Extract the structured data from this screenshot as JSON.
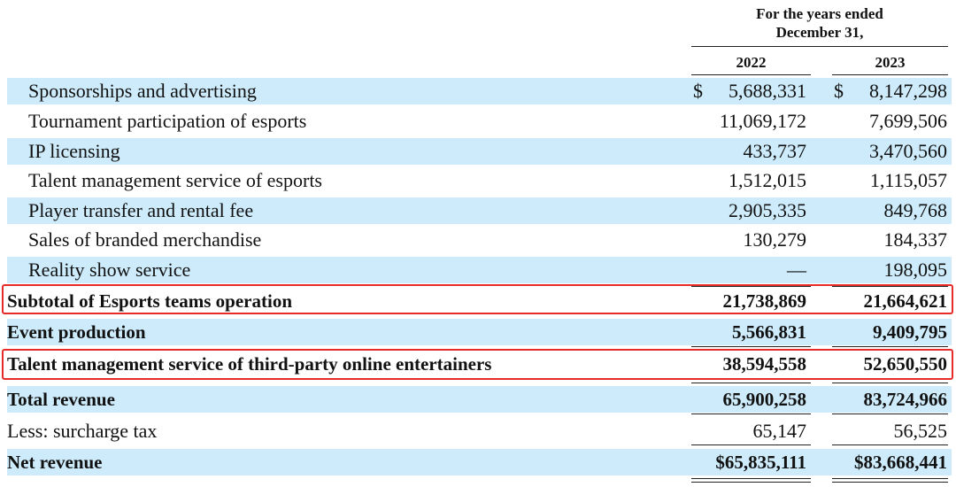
{
  "header": {
    "period_line1": "For the years ended",
    "period_line2": "December 31,",
    "year_1": "2022",
    "year_2": "2023"
  },
  "rows": [
    {
      "label": "Sponsorships and advertising",
      "v2022": "5,688,331",
      "v2023": "8,147,298",
      "dollar": "$"
    },
    {
      "label": "Tournament participation of esports",
      "v2022": "11,069,172",
      "v2023": "7,699,506"
    },
    {
      "label": "IP licensing",
      "v2022": "433,737",
      "v2023": "3,470,560"
    },
    {
      "label": "Talent management service of esports",
      "v2022": "1,512,015",
      "v2023": "1,115,057"
    },
    {
      "label": "Player transfer and rental fee",
      "v2022": "2,905,335",
      "v2023": "849,768"
    },
    {
      "label": "Sales of branded merchandise",
      "v2022": "130,279",
      "v2023": "184,337"
    },
    {
      "label": "Reality show service",
      "v2022": "—",
      "v2023": "198,095"
    },
    {
      "label": "Subtotal of Esports teams operation",
      "v2022": "21,738,869",
      "v2023": "21,664,621"
    },
    {
      "label": "Event production",
      "v2022": "5,566,831",
      "v2023": "9,409,795"
    },
    {
      "label": "Talent management service of third-party online entertainers",
      "v2022": "38,594,558",
      "v2023": "52,650,550"
    },
    {
      "label": "Total revenue",
      "v2022": "65,900,258",
      "v2023": "83,724,966"
    },
    {
      "label": "Less: surcharge tax",
      "v2022": "65,147",
      "v2023": "56,525"
    },
    {
      "label": "Net revenue",
      "v2022": "$65,835,111",
      "v2023": "$83,668,441"
    }
  ],
  "colors": {
    "row_shade": "#cdebfa",
    "highlight_border": "#e52b2b"
  }
}
